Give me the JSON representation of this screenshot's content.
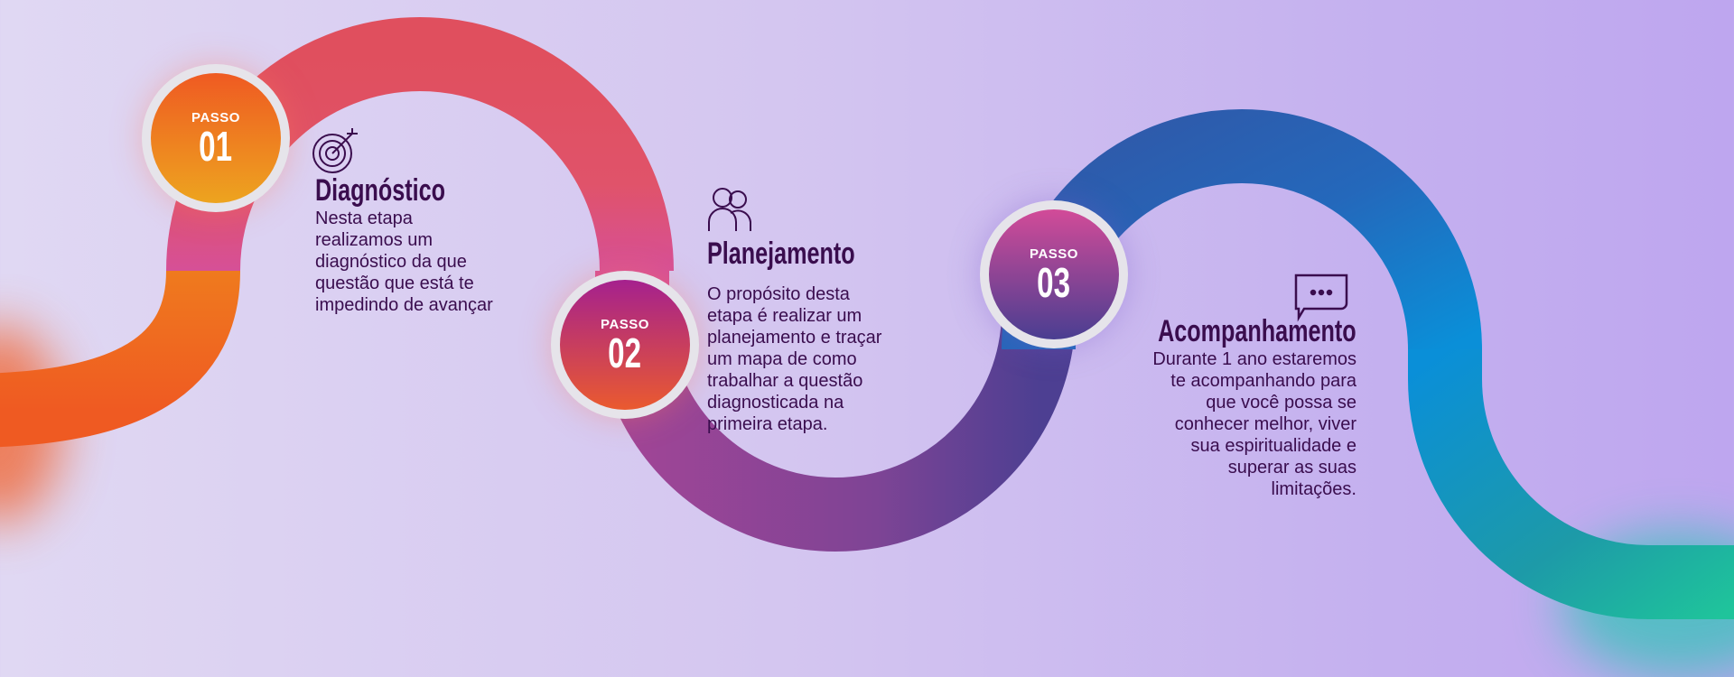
{
  "colors": {
    "background_left": "#e0d8f3",
    "background_right": "#bea6ef",
    "text": "#3a0d4e",
    "step1": [
      "#ef5a22",
      "#eda41f"
    ],
    "step2": [
      "#a5218e",
      "#ea5a2f"
    ],
    "step3": [
      "#d24b98",
      "#4a3e91"
    ],
    "track": [
      "#ef5a22",
      "#e0536a",
      "#d65097",
      "#8a4595",
      "#2a5fb2",
      "#0a8fd8",
      "#1fc49b"
    ]
  },
  "steps": [
    {
      "label": "PASSO",
      "number": "01",
      "icon": "target-icon",
      "title": "Diagnóstico",
      "lines": [
        "Nesta etapa",
        "realizamos um",
        "diagnóstico da que",
        "questão que está te",
        "impedindo de avançar"
      ]
    },
    {
      "label": "PASSO",
      "number": "02",
      "icon": "people-icon",
      "title": "Planejamento",
      "lines": [
        "O propósito desta",
        "etapa é realizar um",
        "planejamento e traçar",
        "um mapa de como",
        "trabalhar a questão",
        "diagnosticada na",
        "primeira etapa."
      ]
    },
    {
      "label": "PASSO",
      "number": "03",
      "icon": "chat-bubble-icon",
      "title": "Acompanhamento",
      "lines": [
        "Durante 1 ano estaremos",
        "te acompanhando para",
        "que você possa se",
        "conhecer melhor, viver",
        "sua espiritualidade e",
        "superar as suas",
        "limitações."
      ]
    }
  ]
}
